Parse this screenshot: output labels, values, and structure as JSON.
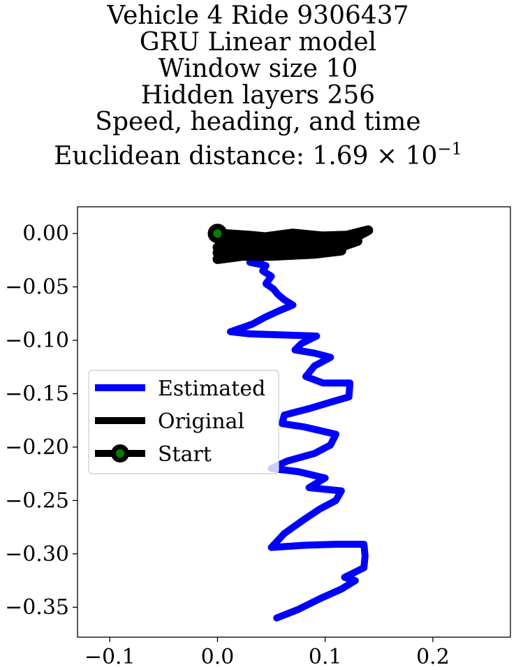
{
  "chart_data": {
    "type": "line",
    "title_lines": [
      "Vehicle 4 Ride 9306437",
      "GRU Linear model",
      "Window size 10",
      "Hidden layers 256",
      "Speed, heading, and time"
    ],
    "title_metric": {
      "label": "Euclidean distance: 1.69",
      "times": "×",
      "base": "10",
      "exponent": "−1"
    },
    "xlim": [
      -0.13,
      0.272
    ],
    "ylim": [
      -0.378,
      0.025
    ],
    "x_ticks": [
      -0.1,
      0.0,
      0.1,
      0.2
    ],
    "x_tick_labels": [
      "−0.1",
      "0.0",
      "0.1",
      "0.2"
    ],
    "y_ticks": [
      0.0,
      -0.05,
      -0.1,
      -0.15,
      -0.2,
      -0.25,
      -0.3,
      -0.35
    ],
    "y_tick_labels": [
      "0.00",
      "−0.05",
      "−0.10",
      "−0.15",
      "−0.20",
      "−0.25",
      "−0.30",
      "−0.35"
    ],
    "legend_position": "center-left",
    "series": [
      {
        "name": "Estimated",
        "color": "#0000ff",
        "points": [
          [
            0.055,
            -0.36
          ],
          [
            0.075,
            -0.352
          ],
          [
            0.095,
            -0.342
          ],
          [
            0.115,
            -0.333
          ],
          [
            0.128,
            -0.325
          ],
          [
            0.118,
            -0.322
          ],
          [
            0.136,
            -0.313
          ],
          [
            0.137,
            -0.302
          ],
          [
            0.136,
            -0.291
          ],
          [
            0.11,
            -0.291
          ],
          [
            0.08,
            -0.292
          ],
          [
            0.05,
            -0.294
          ],
          [
            0.062,
            -0.281
          ],
          [
            0.08,
            -0.268
          ],
          [
            0.095,
            -0.258
          ],
          [
            0.11,
            -0.25
          ],
          [
            0.115,
            -0.241
          ],
          [
            0.085,
            -0.238
          ],
          [
            0.1,
            -0.229
          ],
          [
            0.075,
            -0.223
          ],
          [
            0.05,
            -0.22
          ],
          [
            0.065,
            -0.213
          ],
          [
            0.09,
            -0.206
          ],
          [
            0.105,
            -0.198
          ],
          [
            0.11,
            -0.188
          ],
          [
            0.08,
            -0.181
          ],
          [
            0.06,
            -0.178
          ],
          [
            0.062,
            -0.17
          ],
          [
            0.085,
            -0.164
          ],
          [
            0.105,
            -0.158
          ],
          [
            0.122,
            -0.153
          ],
          [
            0.123,
            -0.14
          ],
          [
            0.098,
            -0.14
          ],
          [
            0.082,
            -0.134
          ],
          [
            0.09,
            -0.124
          ],
          [
            0.105,
            -0.116
          ],
          [
            0.09,
            -0.112
          ],
          [
            0.072,
            -0.109
          ],
          [
            0.078,
            -0.103
          ],
          [
            0.092,
            -0.096
          ],
          [
            0.06,
            -0.095
          ],
          [
            0.03,
            -0.094
          ],
          [
            0.012,
            -0.092
          ],
          [
            0.032,
            -0.085
          ],
          [
            0.045,
            -0.078
          ],
          [
            0.058,
            -0.072
          ],
          [
            0.07,
            -0.067
          ],
          [
            0.062,
            -0.062
          ],
          [
            0.056,
            -0.057
          ],
          [
            0.052,
            -0.052
          ],
          [
            0.045,
            -0.047
          ],
          [
            0.05,
            -0.04
          ],
          [
            0.042,
            -0.035
          ],
          [
            0.045,
            -0.03
          ],
          [
            0.03,
            -0.027
          ],
          [
            0.045,
            -0.022
          ],
          [
            0.042,
            -0.012
          ],
          [
            0.025,
            -0.01
          ],
          [
            0.012,
            -0.006
          ],
          [
            0.005,
            -0.003
          ],
          [
            0.0,
            0.0
          ]
        ]
      },
      {
        "name": "Original",
        "color": "#000000",
        "points": [
          [
            0.0,
            0.0
          ],
          [
            0.03,
            -0.002
          ],
          [
            0.06,
            -0.005
          ],
          [
            0.09,
            -0.003
          ],
          [
            0.12,
            -0.002
          ],
          [
            0.14,
            0.003
          ],
          [
            0.125,
            -0.005
          ],
          [
            0.095,
            -0.009
          ],
          [
            0.06,
            -0.012
          ],
          [
            0.025,
            -0.015
          ],
          [
            0.0,
            -0.018
          ],
          [
            0.04,
            -0.019
          ],
          [
            0.08,
            -0.017
          ],
          [
            0.11,
            -0.014
          ],
          [
            0.13,
            -0.007
          ],
          [
            0.1,
            -0.003
          ],
          [
            0.07,
            0.0
          ],
          [
            0.04,
            -0.004
          ],
          [
            0.01,
            -0.009
          ],
          [
            0.0,
            -0.013
          ],
          [
            0.035,
            -0.013
          ],
          [
            0.07,
            -0.011
          ],
          [
            0.105,
            -0.009
          ],
          [
            0.115,
            -0.016
          ],
          [
            0.09,
            -0.019
          ],
          [
            0.05,
            -0.021
          ],
          [
            0.015,
            -0.021
          ],
          [
            0.0,
            -0.024
          ],
          [
            0.03,
            -0.02
          ],
          [
            0.06,
            -0.017
          ],
          [
            0.085,
            -0.012
          ],
          [
            0.102,
            -0.005
          ]
        ]
      },
      {
        "name": "Start",
        "color": "#008000",
        "points": [
          [
            0.0,
            0.0
          ]
        ]
      }
    ]
  }
}
